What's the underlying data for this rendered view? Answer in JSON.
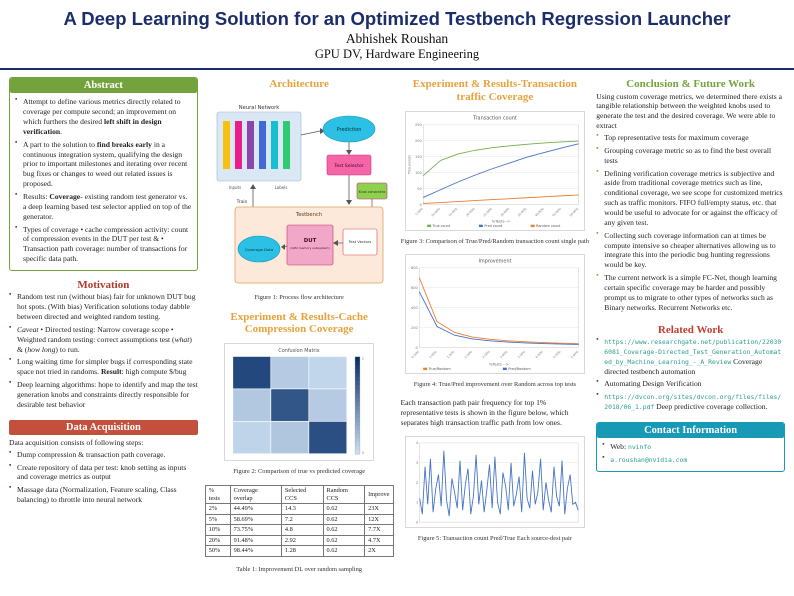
{
  "colors": {
    "navy": "#1b2d6b",
    "green": "#74a33e",
    "orange": "#e8a23b",
    "maroon": "#b0392e",
    "redbar": "#c2503c",
    "red": "#c43d2f",
    "teal": "#1899b5",
    "link": "#2a9d8f"
  },
  "header": {
    "title": "A Deep Learning Solution for an Optimized Testbench Regression Launcher",
    "author": "Abhishek Roushan",
    "affiliation": "GPU DV, Hardware Engineering"
  },
  "abstract": {
    "heading": "Abstract",
    "items": [
      [
        {
          "t": "Attempt to define various metrics directly related to coverage per compute second; an improvement on which furthers the desired "
        },
        {
          "t": "left shift in design verification",
          "b": true
        },
        {
          "t": "."
        }
      ],
      [
        {
          "t": "A part to the solution to "
        },
        {
          "t": "find breaks early",
          "b": true
        },
        {
          "t": " in a continuous integration system, qualifying the design prior to important milestones and iterating over recent bug fixes or changes to weed out related issues is proposed."
        }
      ],
      [
        {
          "t": "Results: "
        },
        {
          "t": "Coverage",
          "b": true
        },
        {
          "t": "- existing random test generator vs. a deep learning based test selector applied on top of the generator."
        }
      ],
      [
        {
          "t": "Types of coverage • cache compression activity: count of compression events in the DUT per test & • Transaction path coverage: number of transactions for specific data path."
        }
      ]
    ]
  },
  "motivation": {
    "heading": "Motivation",
    "items": [
      [
        {
          "t": "Random test run (without bias) fair for unknown DUT bug hot spots. (With bias) Verification solutions today dabble between directed and weighted random testing."
        }
      ],
      [
        {
          "t": "Caveat",
          "i": true
        },
        {
          "t": " • Directed testing: Narrow coverage scope • Weighted random testing: correct assumptions test ("
        },
        {
          "t": "what",
          "i": true
        },
        {
          "t": ") & ("
        },
        {
          "t": "how long",
          "i": true
        },
        {
          "t": ") to run."
        }
      ],
      [
        {
          "t": "Long waiting time for simpler bugs if corresponding state space not tried in randoms. "
        },
        {
          "t": "Result",
          "b": true
        },
        {
          "t": ": high compute $/bug"
        }
      ],
      [
        {
          "t": "Deep learning algorithms: hope to identify and map the test generation knobs and constraints directly responsible for desirable test behavior"
        }
      ]
    ]
  },
  "data_acquisition": {
    "heading": "Data Acquisition",
    "intro": "Data acquisition consists of following steps:",
    "items": [
      "Dump compression & transaction path coverage.",
      "Create repository of data per test: knob setting as inputs and coverage metrics as output",
      "Massage data (Normalization, Feature scaling, Class balancing) to throttle into neural network"
    ]
  },
  "architecture": {
    "heading": "Architecture",
    "caption": "Figure 1: Process flow architecture",
    "labels": {
      "neural_network": "Neural Network",
      "inputs": "Inputs",
      "labels": "Labels",
      "prediction": "Prediction",
      "test_selector": "Test Selector",
      "train": "Train",
      "knob_constraints": "Knob constraints",
      "testbench": "Testbench",
      "dut": "DUT",
      "dut_note": "(GPU memory subsystem)",
      "test_vectors": "Test Vectors",
      "coverage_data": "Coverage Data"
    }
  },
  "cache_results": {
    "heading": "Experiment & Results-Cache Compression Coverage",
    "figure2_caption": "Figure 2: Comparison of true vs predicted coverage",
    "table": {
      "caption": "Table 1: Improvement DL over random sampling",
      "headers": [
        "% tests",
        "Coverage overlap",
        "Selected CCS",
        "Random CCS",
        "Improve"
      ],
      "rows": [
        [
          "2%",
          "44.49%",
          "14.3",
          "0.62",
          "23X"
        ],
        [
          "5%",
          "58.69%",
          "7.2",
          "0.62",
          "12X"
        ],
        [
          "10%",
          "73.75%",
          "4.8",
          "0.62",
          "7.7X"
        ],
        [
          "20%",
          "91.48%",
          "2.92",
          "0.62",
          "4.7X"
        ],
        [
          "50%",
          "98.44%",
          "1.28",
          "0.62",
          "2X"
        ]
      ]
    }
  },
  "transaction_results": {
    "heading": "Experiment & Results-Transaction traffic Coverage",
    "figure3_caption": "Figure 3: Comparison of True/Pred/Random transaction count single path",
    "figure4_caption": "Figure 4: True/Pred improvement over Random across top tests",
    "paragraph": "Each transaction path pair frequency for top 1% representative tests is shown in the figure below, which separates high transaction traffic path from low ones.",
    "figure5_caption": "Figure 5: Transaction count Pred/True Each source-dest pair"
  },
  "conclusion": {
    "heading": "Conclusion & Future Work",
    "intro": "Using custom coverage metrics, we determined there exists a tangible relationship between the weighted knobs used to generate the test and the desired coverage. We were able to extract",
    "items": [
      "Top representative tests for maximum coverage",
      "Grouping coverage metric so as to find the best overall tests",
      "Defining verification coverage metrics is subjective and aside from traditional coverage metrics such as line, conditional coverage, we see scope for customized metrics such as traffic monitors. FIFO full/empty status, etc. that would be useful to advocate for or against the efficacy of any given test.",
      "Collecting such coverage information can at times be compute intensive so cheaper alternatives allowing us to integrate this into the periodic bug hunting regressions would be key.",
      "The current network is a simple FC-Net, though learning certain specific coverage may be harder and possibly prompt us to migrate to other types of networks such as Binary networks. Recurrent Networks etc."
    ]
  },
  "related_work": {
    "heading": "Related Work",
    "items": [
      [
        {
          "t": "https://www.researchgate.net/publication/220306081_Coverage-Directed_Test_Generation_Automated_by_Machine_Learning_-_A_Review",
          "m": true
        },
        {
          "t": " Coverage directed testbench automation"
        }
      ],
      [
        {
          "t": "Automating Design Verification"
        }
      ],
      [
        {
          "t": "https://dvcon.org/sites/dvcon.org/files/files/2018/06_1.pdf",
          "m": true
        },
        {
          "t": " Deep predictive coverage collection."
        }
      ]
    ]
  },
  "contact": {
    "heading": "Contact Information",
    "items": [
      [
        {
          "t": "Web: "
        },
        {
          "t": "nvinfo",
          "m": true
        }
      ],
      [
        {
          "t": "a.roushan@nvidia.com",
          "m": true
        }
      ]
    ]
  },
  "chart_data": [
    {
      "id": "fig2",
      "type": "heatmap",
      "title": "Confusion Matrix",
      "values": [
        [
          0.86,
          0.1,
          0.04
        ],
        [
          0.12,
          0.78,
          0.1
        ],
        [
          0.05,
          0.13,
          0.82
        ]
      ],
      "colormap": [
        "#c9dcf0",
        "#08306b"
      ],
      "colorbar": true,
      "colorbar_range": [
        0,
        1
      ]
    },
    {
      "id": "fig3",
      "type": "line",
      "title": "Transaction count",
      "ylabel": "Thousands",
      "xlabel": "%Tests-->",
      "ylim": [
        0,
        250
      ],
      "yticks": 5,
      "grid": true,
      "legend_position": "bottom",
      "x_ticks": [
        "5.00%",
        "10.00%",
        "15.00%",
        "20.00%",
        "25.00%",
        "30.00%",
        "35.00%",
        "40.00%",
        "45.00%",
        "50.00%"
      ],
      "series": [
        {
          "name": "True count",
          "color": "#70ad47",
          "values": [
            90,
            138,
            158,
            170,
            178,
            184,
            189,
            193,
            196,
            199
          ]
        },
        {
          "name": "Pred count",
          "color": "#4472c4",
          "values": [
            22,
            46,
            70,
            92,
            112,
            130,
            148,
            163,
            177,
            190
          ]
        },
        {
          "name": "Random count",
          "color": "#ed7d31",
          "values": [
            3,
            6,
            9,
            12,
            15,
            18,
            21,
            24,
            27,
            30
          ]
        }
      ]
    },
    {
      "id": "fig4",
      "type": "line",
      "title": "Improvement",
      "xlabel": "%Tests -->",
      "ylim": [
        0,
        800
      ],
      "yticks": 4,
      "grid": true,
      "legend_position": "bottom",
      "x_ticks": [
        "0.50%",
        "1.00%",
        "1.50%",
        "2.00%",
        "2.50%",
        "3.00%",
        "3.50%",
        "4.00%",
        "4.50%",
        "5.00%"
      ],
      "series": [
        {
          "name": "True/Random",
          "color": "#ed7d31",
          "values": [
            700,
            260,
            150,
            105,
            82,
            66,
            56,
            48,
            42,
            38
          ]
        },
        {
          "name": "Pred/Random",
          "color": "#4472c4",
          "values": [
            560,
            210,
            122,
            86,
            66,
            54,
            45,
            39,
            34,
            30
          ]
        }
      ]
    },
    {
      "id": "fig5",
      "type": "line",
      "title": "",
      "ylim": [
        0,
        4
      ],
      "yticks": 4,
      "grid": true,
      "legend_position": "none",
      "series": [
        {
          "name": "Pred/True",
          "color": "#4472c4",
          "values": [
            1.2,
            0.4,
            2.8,
            0.9,
            3.2,
            0.5,
            1.7,
            2.4,
            0.8,
            3.6,
            1.1,
            0.3,
            2.2,
            1.5,
            0.7,
            3.1,
            0.6,
            1.9,
            2.7,
            0.4,
            1.3,
            3.4,
            0.9,
            2.1,
            0.5,
            1.6,
            2.9,
            0.7,
            3.3,
            1.0,
            0.4,
            2.5,
            1.8,
            0.6,
            3.0,
            0.8,
            1.4,
            2.3,
            0.5,
            3.5,
            1.2,
            0.7,
            2.6,
            0.9,
            1.5,
            3.2,
            0.6,
            2.0,
            1.1,
            0.5,
            2.8,
            1.3,
            0.8,
            3.1,
            0.4,
            1.7,
            2.4,
            0.9,
            1.0,
            0.6
          ]
        }
      ]
    }
  ]
}
